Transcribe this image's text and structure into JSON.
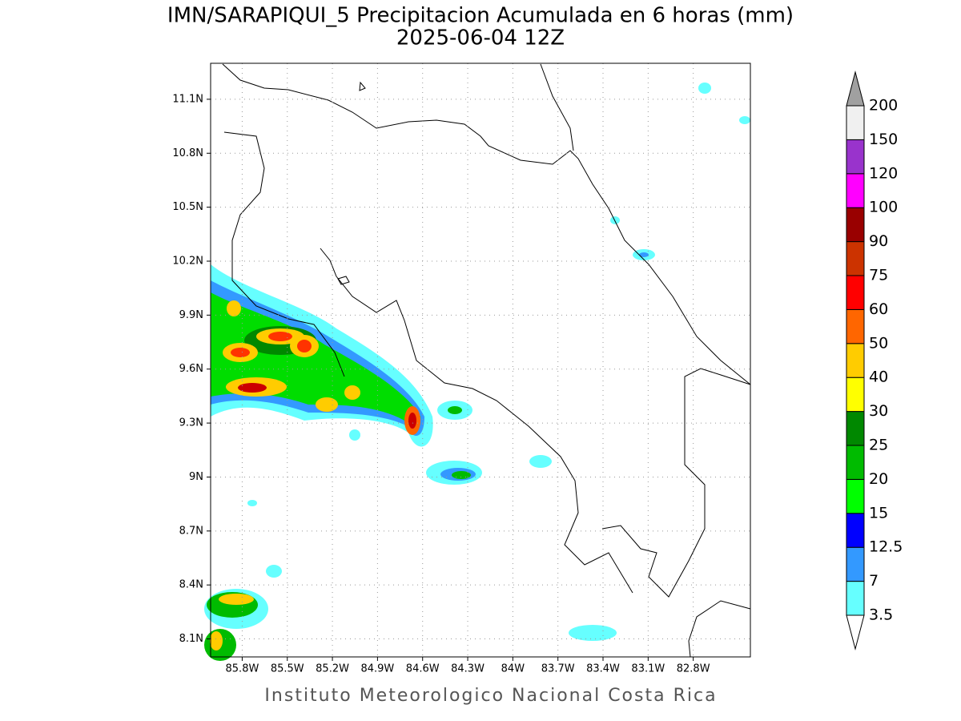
{
  "title": "IMN/SARAPIQUI_5 Precipitacion Acumulada en 6 horas (mm)",
  "subtitle": "2025-06-04 12Z",
  "map": {
    "lon_range": [
      -86.01,
      -82.42
    ],
    "lat_range": [
      8.0,
      11.3
    ],
    "lat_ticks": [
      {
        "value": 11.1,
        "label": "11.1N"
      },
      {
        "value": 10.8,
        "label": "10.8N"
      },
      {
        "value": 10.5,
        "label": "10.5N"
      },
      {
        "value": 10.2,
        "label": "10.2N"
      },
      {
        "value": 9.9,
        "label": "9.9N"
      },
      {
        "value": 9.6,
        "label": "9.6N"
      },
      {
        "value": 9.3,
        "label": "9.3N"
      },
      {
        "value": 9.0,
        "label": "9N"
      },
      {
        "value": 8.7,
        "label": "8.7N"
      },
      {
        "value": 8.4,
        "label": "8.4N"
      },
      {
        "value": 8.1,
        "label": "8.1N"
      }
    ],
    "lon_ticks": [
      {
        "value": -85.8,
        "label": "85.8W"
      },
      {
        "value": -85.5,
        "label": "85.5W"
      },
      {
        "value": -85.2,
        "label": "85.2W"
      },
      {
        "value": -84.9,
        "label": "84.9W"
      },
      {
        "value": -84.6,
        "label": "84.6W"
      },
      {
        "value": -84.3,
        "label": "84.3W"
      },
      {
        "value": -84.0,
        "label": "84W"
      },
      {
        "value": -83.7,
        "label": "83.7W"
      },
      {
        "value": -83.4,
        "label": "83.4W"
      },
      {
        "value": -83.1,
        "label": "83.1W"
      },
      {
        "value": -82.8,
        "label": "82.8W"
      }
    ]
  },
  "colorbar": {
    "levels": [
      3.5,
      7,
      12.5,
      15,
      20,
      25,
      30,
      40,
      50,
      60,
      75,
      90,
      100,
      120,
      150,
      200
    ],
    "colors": [
      "#66ffff",
      "#3399ff",
      "#0000ff",
      "#00ff00",
      "#00bb00",
      "#008800",
      "#ffff00",
      "#ffcc00",
      "#ff6600",
      "#ff0000",
      "#cc3300",
      "#990000",
      "#ff00ff",
      "#9933cc",
      "#f0f0f0"
    ],
    "over_color": "#a0a0a0",
    "under_color": "#ffffff"
  },
  "footer": "Instituto Meteorologico Nacional Costa Rica"
}
